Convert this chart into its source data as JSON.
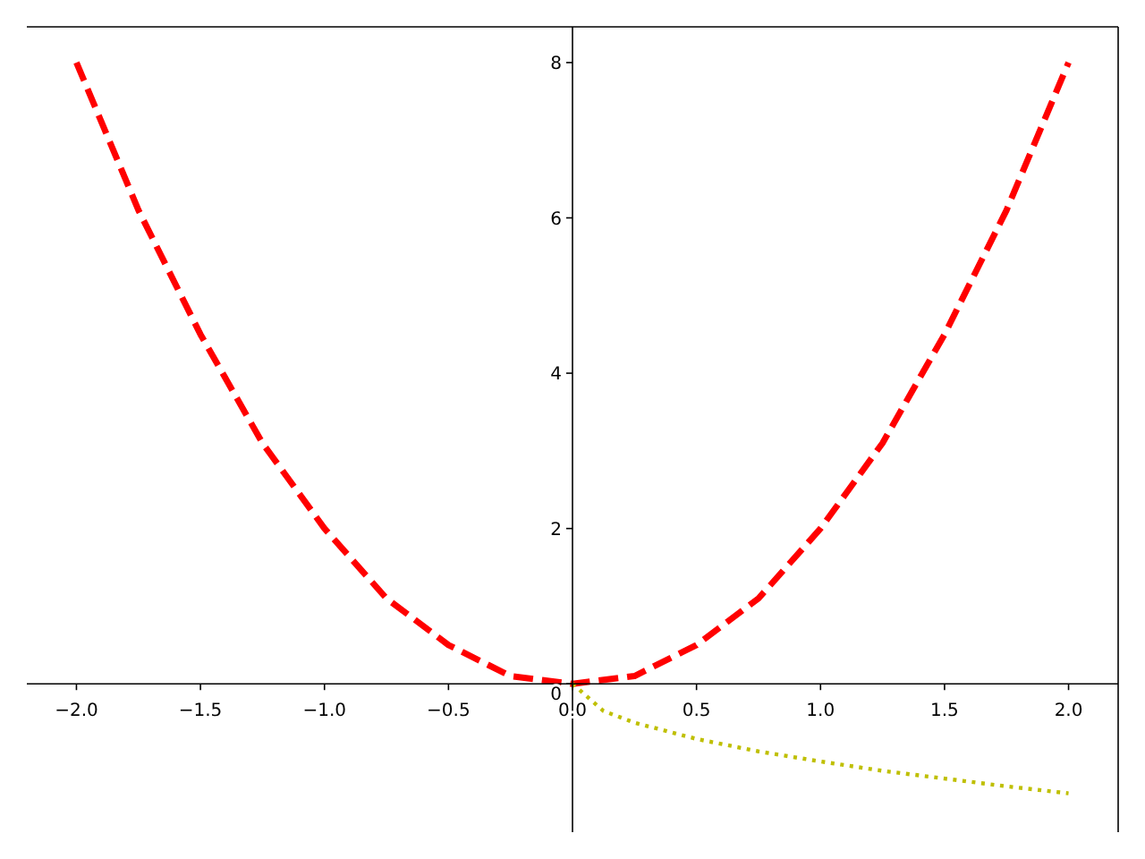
{
  "chart_data": {
    "type": "line",
    "xlim": [
      -2.2,
      2.2
    ],
    "ylim": [
      -1.91,
      8.46
    ],
    "xticks": [
      {
        "value": -2,
        "label": "−2.0"
      },
      {
        "value": -1.5,
        "label": "−1.5"
      },
      {
        "value": -1,
        "label": "−1.0"
      },
      {
        "value": -0.5,
        "label": "−0.5"
      },
      {
        "value": 0,
        "label": "0.0"
      },
      {
        "value": 0.5,
        "label": "0.5"
      },
      {
        "value": 1,
        "label": "1.0"
      },
      {
        "value": 1.5,
        "label": "1.5"
      },
      {
        "value": 2,
        "label": "2.0"
      }
    ],
    "yticks": [
      0,
      2,
      4,
      6,
      8
    ],
    "grid": false,
    "series": [
      {
        "color": "#ff0000",
        "line_style": "dashed",
        "x": [
          -2,
          -1.75,
          -1.5,
          -1.25,
          -1,
          -0.75,
          -0.5,
          -0.25,
          0,
          0.25,
          0.5,
          0.75,
          1,
          1.25,
          1.5,
          1.75,
          2
        ],
        "values": [
          8,
          6.1,
          4.5,
          3.1,
          2,
          1.1,
          0.5,
          0.1,
          0,
          0.1,
          0.5,
          1.1,
          2,
          3.1,
          4.5,
          6.1,
          8
        ]
      },
      {
        "color": "#bfbf00",
        "line_style": "dotted",
        "x": [
          0,
          0.125,
          0.25,
          0.5,
          0.75,
          1,
          1.25,
          1.5,
          1.75,
          2
        ],
        "values": [
          0,
          -0.35,
          -0.5,
          -0.71,
          -0.87,
          -1,
          -1.12,
          -1.22,
          -1.32,
          -1.41
        ]
      }
    ]
  }
}
